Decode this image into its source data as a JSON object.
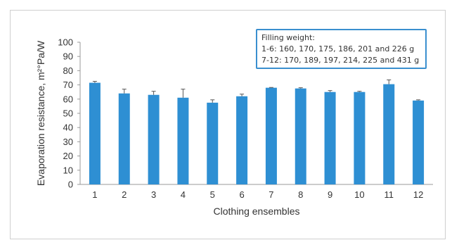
{
  "chart_data": {
    "type": "bar",
    "title": "",
    "xlabel": "Clothing ensembles",
    "ylabel": "Evaporation resistance, m²°Pa/W",
    "ylim": [
      0,
      100
    ],
    "yticks": [
      "0",
      "10",
      "20",
      "30",
      "40",
      "50",
      "60",
      "70",
      "80",
      "90",
      "100"
    ],
    "grid": false,
    "legend": "none",
    "bar_color": "#2e8fd3",
    "categories": [
      "1",
      "2",
      "3",
      "4",
      "5",
      "6",
      "7",
      "8",
      "9",
      "10",
      "11",
      "12"
    ],
    "values": [
      71.5,
      64,
      63,
      61,
      57.5,
      62,
      68,
      67.5,
      65,
      65,
      70.5,
      59
    ],
    "error_plus": [
      1,
      3,
      2.5,
      6,
      2,
      1.5,
      0.2,
      0.5,
      1,
      0.5,
      3,
      0.5
    ],
    "annotation": {
      "heading": "Filling weight:",
      "line1": "1-6: 160, 170, 175, 186, 201 and 226 g",
      "line2": "7-12: 170, 189, 197, 214, 225 and 431 g"
    }
  }
}
